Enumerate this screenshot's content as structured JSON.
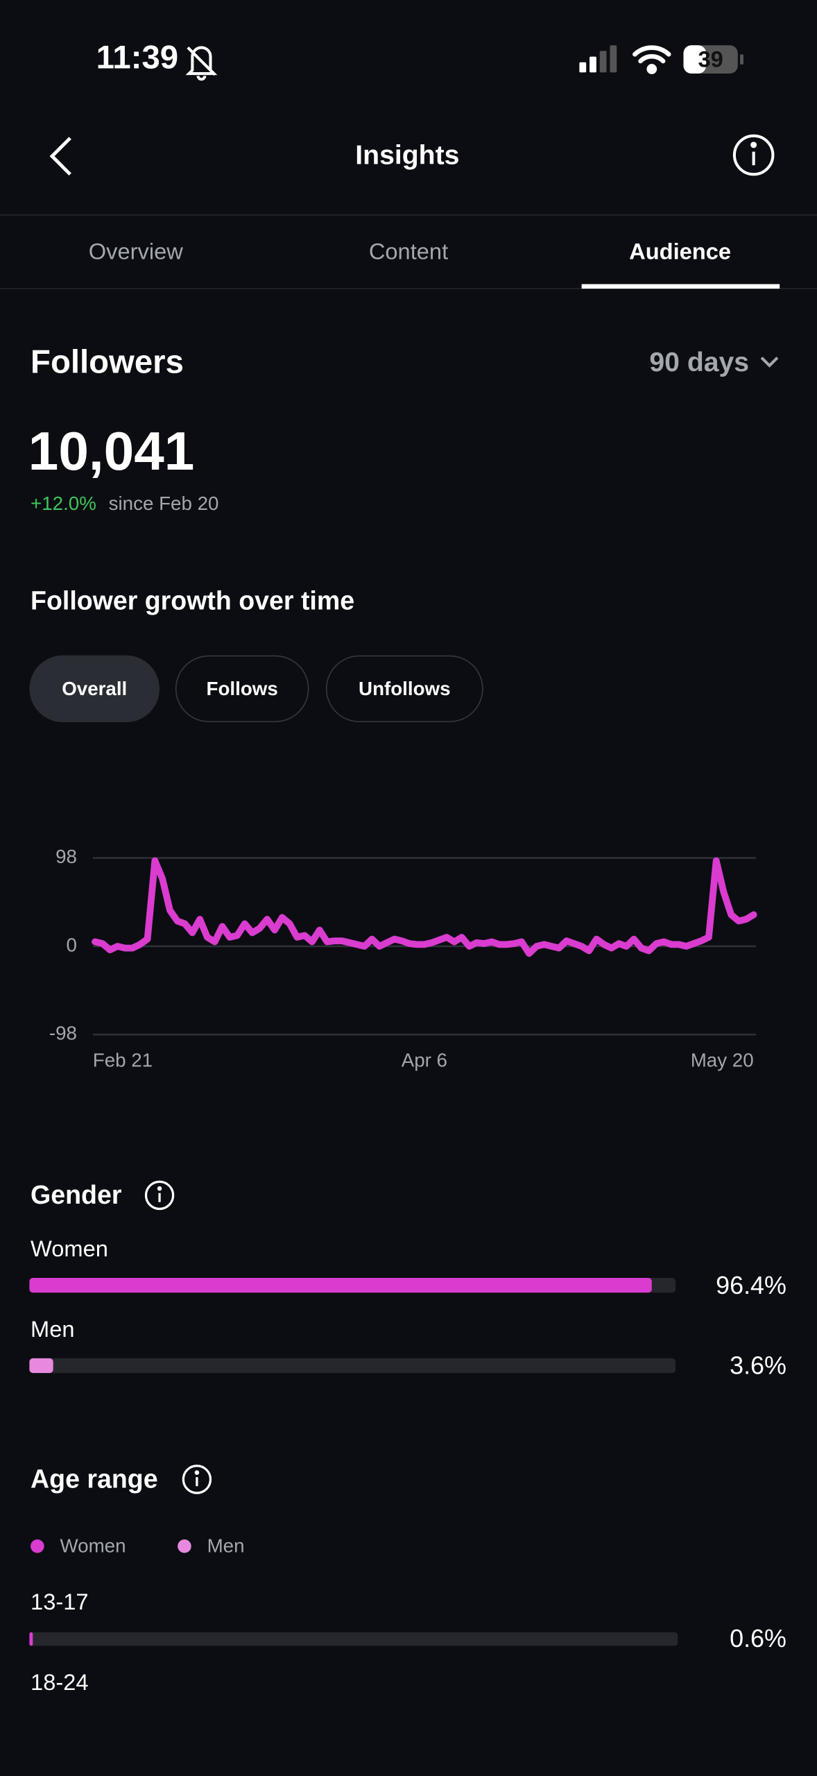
{
  "status_bar": {
    "time": "11:39",
    "battery": "39"
  },
  "header": {
    "title": "Insights"
  },
  "tabs": {
    "items": [
      "Overview",
      "Content",
      "Audience"
    ],
    "active": 2
  },
  "followers": {
    "title": "Followers",
    "period": "90 days",
    "count": "10,041",
    "change": "+12.0%",
    "since": "since Feb 20"
  },
  "growth": {
    "title": "Follower growth over time",
    "filters": [
      "Overall",
      "Follows",
      "Unfollows"
    ],
    "active_filter": 0
  },
  "chart_data": {
    "type": "line",
    "color": "#d93ccf",
    "grid": true,
    "ylim": [
      -98,
      98
    ],
    "yticks": [
      -98,
      0,
      98
    ],
    "categories": [
      "Feb 21",
      null,
      null,
      null,
      null,
      null,
      null,
      null,
      null,
      null,
      null,
      null,
      null,
      null,
      null,
      null,
      null,
      null,
      null,
      null,
      null,
      null,
      null,
      null,
      null,
      null,
      null,
      null,
      null,
      null,
      null,
      null,
      null,
      null,
      null,
      null,
      null,
      null,
      null,
      null,
      null,
      null,
      null,
      null,
      "Apr 6",
      null,
      null,
      null,
      null,
      null,
      null,
      null,
      null,
      null,
      null,
      null,
      null,
      null,
      null,
      null,
      null,
      null,
      null,
      null,
      null,
      null,
      null,
      null,
      null,
      null,
      null,
      null,
      null,
      null,
      null,
      null,
      null,
      null,
      null,
      null,
      null,
      null,
      null,
      null,
      null,
      null,
      null,
      null,
      "May 20"
    ],
    "values": [
      5,
      3,
      -4,
      0,
      -2,
      -2,
      2,
      8,
      95,
      75,
      40,
      28,
      25,
      15,
      30,
      10,
      5,
      22,
      10,
      12,
      25,
      15,
      20,
      30,
      18,
      32,
      25,
      10,
      12,
      5,
      18,
      5,
      6,
      6,
      4,
      2,
      0,
      8,
      0,
      4,
      8,
      6,
      3,
      2,
      2,
      4,
      7,
      10,
      5,
      10,
      0,
      4,
      3,
      5,
      2,
      2,
      3,
      5,
      -8,
      0,
      2,
      0,
      -2,
      6,
      3,
      0,
      -5,
      8,
      2,
      -2,
      3,
      0,
      8,
      -2,
      -5,
      3,
      5,
      2,
      2,
      0,
      3,
      6,
      10,
      95,
      60,
      35,
      28,
      30,
      35
    ]
  },
  "gender": {
    "title": "Gender",
    "xlim": [
      0,
      100
    ],
    "categories": [
      "Women",
      "Men"
    ],
    "values": [
      96.4,
      3.6
    ],
    "value_labels": [
      "96.4%",
      "3.6%"
    ],
    "colors": [
      "#d93ccf",
      "#e889df"
    ]
  },
  "age": {
    "title": "Age range",
    "legend": [
      {
        "name": "Women",
        "color": "#d93ccf"
      },
      {
        "name": "Men",
        "color": "#e889df"
      }
    ],
    "xlim": [
      0,
      100
    ],
    "groups": [
      {
        "label": "13-17",
        "value": 0.6,
        "value_label": "0.6%"
      },
      {
        "label": "18-24"
      }
    ]
  }
}
